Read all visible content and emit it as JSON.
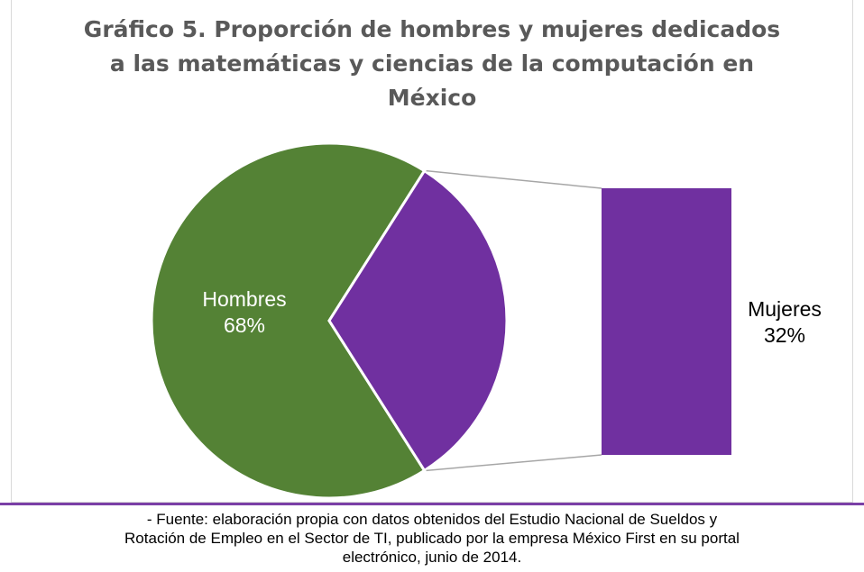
{
  "chart_data": {
    "type": "pie",
    "variant": "bar-of-pie",
    "title": "Gráfico 5. Proporción de hombres y mujeres dedicados a las matemáticas y ciencias de la computación en México",
    "title_lines": [
      "Gráfico 5. Proporción de hombres y mujeres dedicados",
      "a las matemáticas y ciencias de la computación en",
      "México"
    ],
    "categories": [
      "Hombres",
      "Mujeres"
    ],
    "values": [
      68,
      32
    ],
    "value_labels": [
      "68%",
      "32%"
    ],
    "colors": [
      "#548235",
      "#7030a0"
    ],
    "label_colors": [
      "#ffffff",
      "#000000"
    ],
    "connector_color": "#a6a6a6"
  },
  "source_note": {
    "lines": [
      "- Fuente: elaboración propia con datos obtenidos del Estudio Nacional de Sueldos y",
      "Rotación de Empleo en el Sector de TI, publicado por la empresa México First en su portal",
      "electrónico, junio de 2014."
    ]
  },
  "colors": {
    "rule": "#7a3fa6",
    "title": "#595959"
  }
}
